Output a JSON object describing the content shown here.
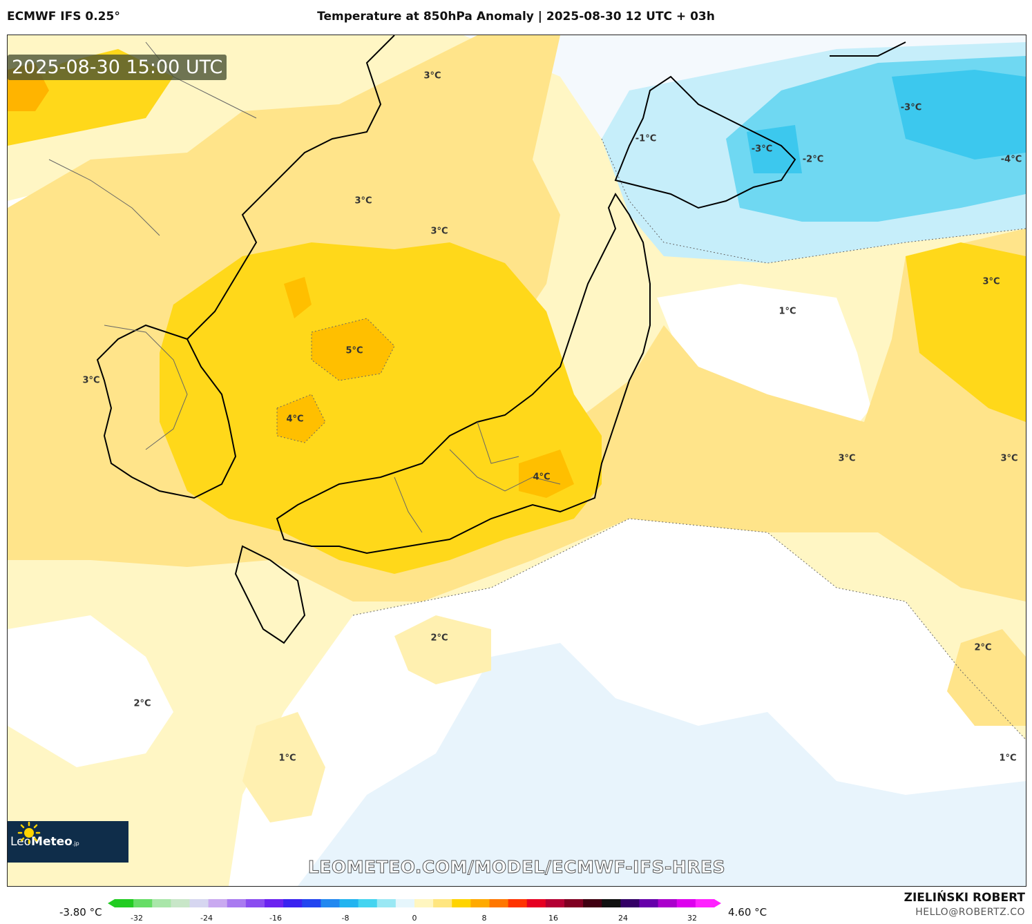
{
  "header": {
    "model": "ECMWF IFS 0.25°",
    "title": "Temperature at 850hPa Anomaly | 2025-08-30 12 UTC + 03h"
  },
  "map": {
    "valid_time": "2025-08-30 15:00 UTC",
    "watermark": "LEOMETEO.COM/MODEL/ECMWF-IFS-HRES",
    "labels": [
      {
        "text": "3°C"
      },
      {
        "text": "-1°C"
      },
      {
        "text": "-3°C"
      },
      {
        "text": "-3°C"
      },
      {
        "text": "-2°C"
      },
      {
        "text": "-4°C"
      },
      {
        "text": "3°C"
      },
      {
        "text": "3°C"
      },
      {
        "text": "3°C"
      },
      {
        "text": "1°C"
      },
      {
        "text": "5°C"
      },
      {
        "text": "3°C"
      },
      {
        "text": "4°C"
      },
      {
        "text": "3°C"
      },
      {
        "text": "3°C"
      },
      {
        "text": "4°C"
      },
      {
        "text": "2°C"
      },
      {
        "text": "2°C"
      },
      {
        "text": "2°C"
      },
      {
        "text": "1°C"
      },
      {
        "text": "1°C"
      }
    ]
  },
  "logo": {
    "brand": "Leo",
    "brand_bold": "Meteo",
    "suffix": ".jp"
  },
  "colorbar": {
    "min_label": "-3.80 °C",
    "max_label": "4.60 °C",
    "ticks": [
      "-32",
      "-24",
      "-16",
      "-8",
      "0",
      "8",
      "16",
      "24",
      "32"
    ],
    "colors": [
      "#22cc22",
      "#66dd66",
      "#a9e6a9",
      "#c8e6c8",
      "#d6d6f0",
      "#c9a9f0",
      "#a97af0",
      "#8a4cf0",
      "#6b22f0",
      "#3a22f0",
      "#2244f0",
      "#2288f0",
      "#22b4f0",
      "#44d4f0",
      "#9ae8f4",
      "#e6f6fc",
      "#fff6c0",
      "#ffe680",
      "#ffd400",
      "#ffaa00",
      "#ff7700",
      "#ff3300",
      "#e60022",
      "#b40033",
      "#800022",
      "#400011",
      "#111111",
      "#330066",
      "#6600aa",
      "#aa00cc",
      "#dd00ee",
      "#ff22ff"
    ]
  },
  "credits": {
    "author": "ZIELIŃSKI ROBERT",
    "email": "HELLO@ROBERTZ.CO"
  }
}
